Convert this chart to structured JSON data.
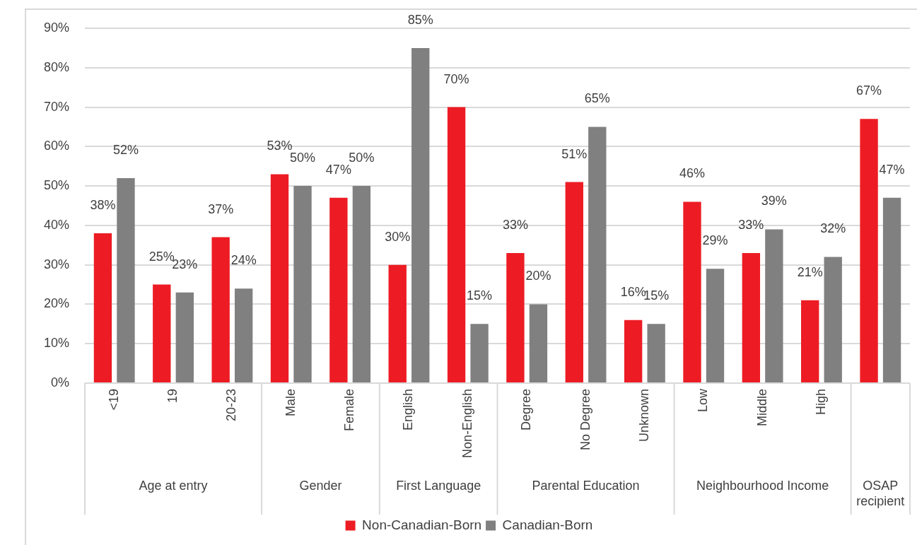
{
  "chart_data": {
    "type": "bar",
    "categories": [
      "<19",
      "19",
      "20-23",
      "Male",
      "Female",
      "English",
      "Non-English",
      "Degree",
      "No Degree",
      "Unknown",
      "Low",
      "Middle",
      "High",
      null
    ],
    "series": [
      {
        "name": "Non-Canadian-Born",
        "color": "#ed1c24",
        "values": [
          38,
          25,
          37,
          53,
          47,
          30,
          70,
          33,
          51,
          16,
          46,
          33,
          21,
          67
        ],
        "value_labels": [
          "38%",
          "25%",
          "37%",
          "53%",
          "47%",
          "30%",
          "70%",
          "33%",
          "51%",
          "16%",
          "46%",
          "33%",
          "21%",
          "67%"
        ]
      },
      {
        "name": "Canadian-Born",
        "color": "#808080",
        "values": [
          52,
          23,
          24,
          50,
          50,
          85,
          15,
          20,
          65,
          15,
          29,
          39,
          32,
          47
        ],
        "value_labels": [
          "52%",
          "23%",
          "24%",
          "50%",
          "50%",
          "85%",
          "15%",
          "20%",
          "65%",
          "15%",
          "29%",
          "39%",
          "32%",
          "47%"
        ]
      }
    ],
    "annotations": [
      "Age at entry",
      "Gender",
      "First Language",
      "Parental Education",
      "Neighbourhood Income",
      "OSAP recipient"
    ],
    "ylim": [
      0,
      90
    ],
    "yticks": [
      {
        "value": 0,
        "label": "0%"
      },
      {
        "value": 10,
        "label": "10%"
      },
      {
        "value": 20,
        "label": "20%"
      },
      {
        "value": 30,
        "label": "30%"
      },
      {
        "value": 40,
        "label": "40%"
      },
      {
        "value": 50,
        "label": "50%"
      },
      {
        "value": 60,
        "label": "60%"
      },
      {
        "value": 70,
        "label": "70%"
      },
      {
        "value": 80,
        "label": "80%"
      },
      {
        "value": 90,
        "label": "90%"
      }
    ],
    "grid": "y",
    "legend": "bottom"
  }
}
